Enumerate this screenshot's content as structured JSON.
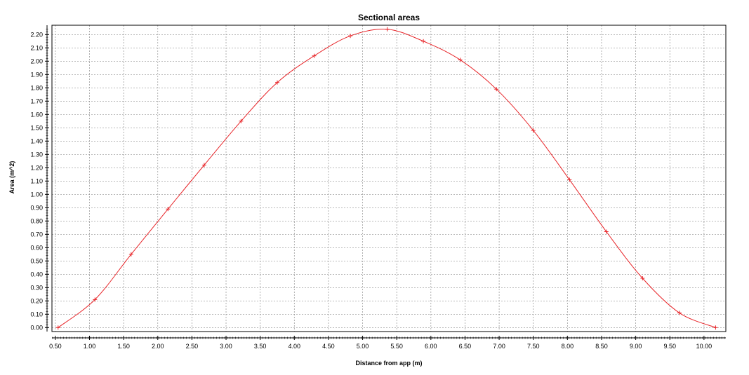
{
  "chart_data": {
    "type": "line",
    "title": "Sectional areas",
    "xlabel": "Distance from app (m)",
    "ylabel": "Area (m^2)",
    "xlim": [
      0.45,
      10.32
    ],
    "ylim": [
      -0.03,
      2.27
    ],
    "grid": true,
    "x_ticks": [
      "0.50",
      "1.00",
      "1.50",
      "2.00",
      "2.50",
      "3.00",
      "3.50",
      "4.00",
      "4.50",
      "5.00",
      "5.50",
      "6.00",
      "6.50",
      "7.00",
      "7.50",
      "8.00",
      "8.50",
      "9.00",
      "9.50",
      "10.00"
    ],
    "y_ticks": [
      "0.00",
      "0.10",
      "0.20",
      "0.30",
      "0.40",
      "0.50",
      "0.60",
      "0.70",
      "0.80",
      "0.90",
      "1.00",
      "1.10",
      "1.20",
      "1.30",
      "1.40",
      "1.50",
      "1.60",
      "1.70",
      "1.80",
      "1.90",
      "2.00",
      "2.10",
      "2.20"
    ],
    "series": [
      {
        "color": "#e8262a",
        "marker": "+",
        "x": [
          0.54,
          1.08,
          1.61,
          2.15,
          2.68,
          3.22,
          3.75,
          4.29,
          4.82,
          5.36,
          5.89,
          6.43,
          6.96,
          7.5,
          8.03,
          8.57,
          9.1,
          9.64,
          10.17
        ],
        "y": [
          0.0,
          0.21,
          0.55,
          0.89,
          1.22,
          1.55,
          1.84,
          2.04,
          2.19,
          2.24,
          2.15,
          2.01,
          1.79,
          1.48,
          1.11,
          0.72,
          0.37,
          0.11,
          0.0
        ]
      }
    ]
  }
}
